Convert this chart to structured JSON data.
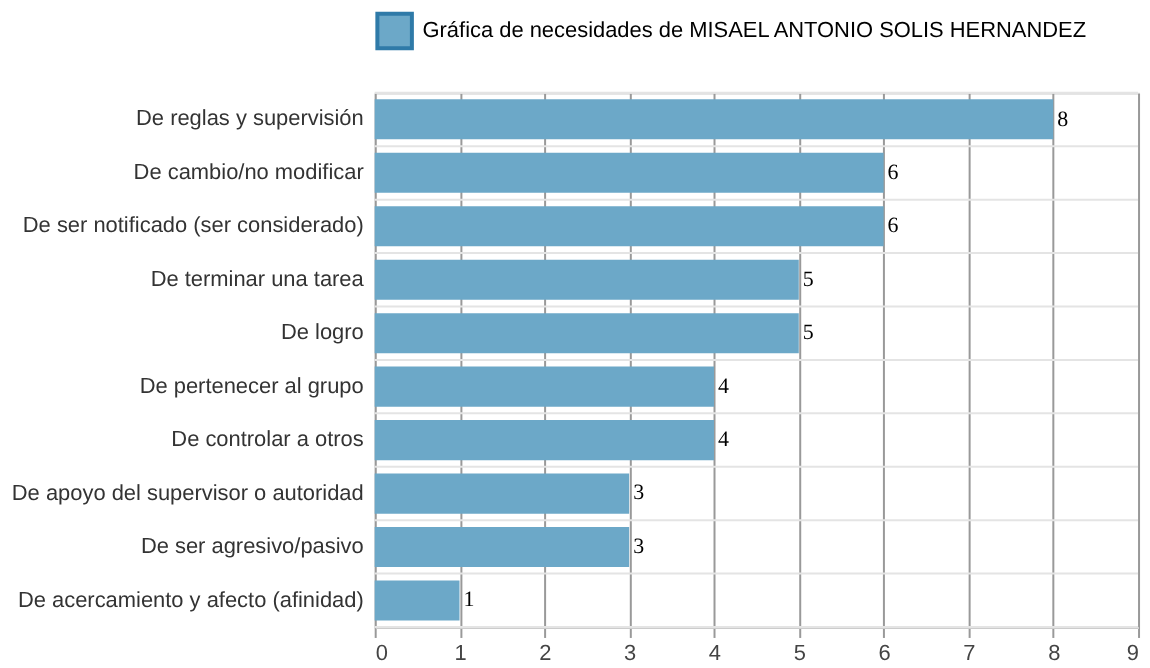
{
  "chart_data": {
    "type": "bar",
    "orientation": "horizontal",
    "categories": [
      "De reglas y supervisión",
      "De cambio/no modificar",
      "De ser notificado (ser considerado)",
      "De terminar una tarea",
      "De logro",
      "De pertenecer al grupo",
      "De controlar a otros",
      "De apoyo del supervisor o autoridad",
      "De ser agresivo/pasivo",
      "De acercamiento y afecto (afinidad)"
    ],
    "series": [
      {
        "name": "Gráfica de necesidades de MISAEL ANTONIO SOLIS HERNANDEZ",
        "color": "#6ca8c8",
        "values": [
          8,
          6,
          6,
          5,
          5,
          4,
          4,
          3,
          3,
          1
        ]
      }
    ],
    "xlim": [
      0,
      9
    ],
    "xticks": [
      0,
      1,
      2,
      3,
      4,
      5,
      6,
      7,
      8,
      9
    ],
    "grid": true,
    "legend": "top",
    "data_labels": true
  }
}
